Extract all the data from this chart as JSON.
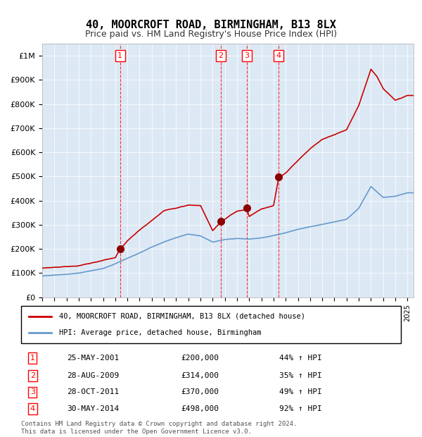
{
  "title": "40, MOORCROFT ROAD, BIRMINGHAM, B13 8LX",
  "subtitle": "Price paid vs. HM Land Registry's House Price Index (HPI)",
  "bg_color": "#dce9f5",
  "plot_bg_color": "#dce9f5",
  "sale_color": "#cc0000",
  "hpi_color": "#6699cc",
  "transactions": [
    {
      "num": 1,
      "date_label": "25-MAY-2001",
      "year": 2001.4,
      "price": 200000,
      "pct": "44%"
    },
    {
      "num": 2,
      "date_label": "28-AUG-2009",
      "year": 2009.65,
      "price": 314000,
      "pct": "35%"
    },
    {
      "num": 3,
      "date_label": "28-OCT-2011",
      "year": 2011.82,
      "price": 370000,
      "pct": "49%"
    },
    {
      "num": 4,
      "date_label": "30-MAY-2014",
      "year": 2014.41,
      "price": 498000,
      "pct": "92%"
    }
  ],
  "ylim": [
    0,
    1050000
  ],
  "xlim_start": 1995,
  "xlim_end": 2025.5,
  "yticks": [
    0,
    100000,
    200000,
    300000,
    400000,
    500000,
    600000,
    700000,
    800000,
    900000,
    1000000
  ],
  "ytick_labels": [
    "£0",
    "£100K",
    "£200K",
    "£300K",
    "£400K",
    "£500K",
    "£600K",
    "£700K",
    "£800K",
    "£900K",
    "£1M"
  ],
  "legend_sale": "40, MOORCROFT ROAD, BIRMINGHAM, B13 8LX (detached house)",
  "legend_hpi": "HPI: Average price, detached house, Birmingham",
  "footer": "Contains HM Land Registry data © Crown copyright and database right 2024.\nThis data is licensed under the Open Government Licence v3.0."
}
